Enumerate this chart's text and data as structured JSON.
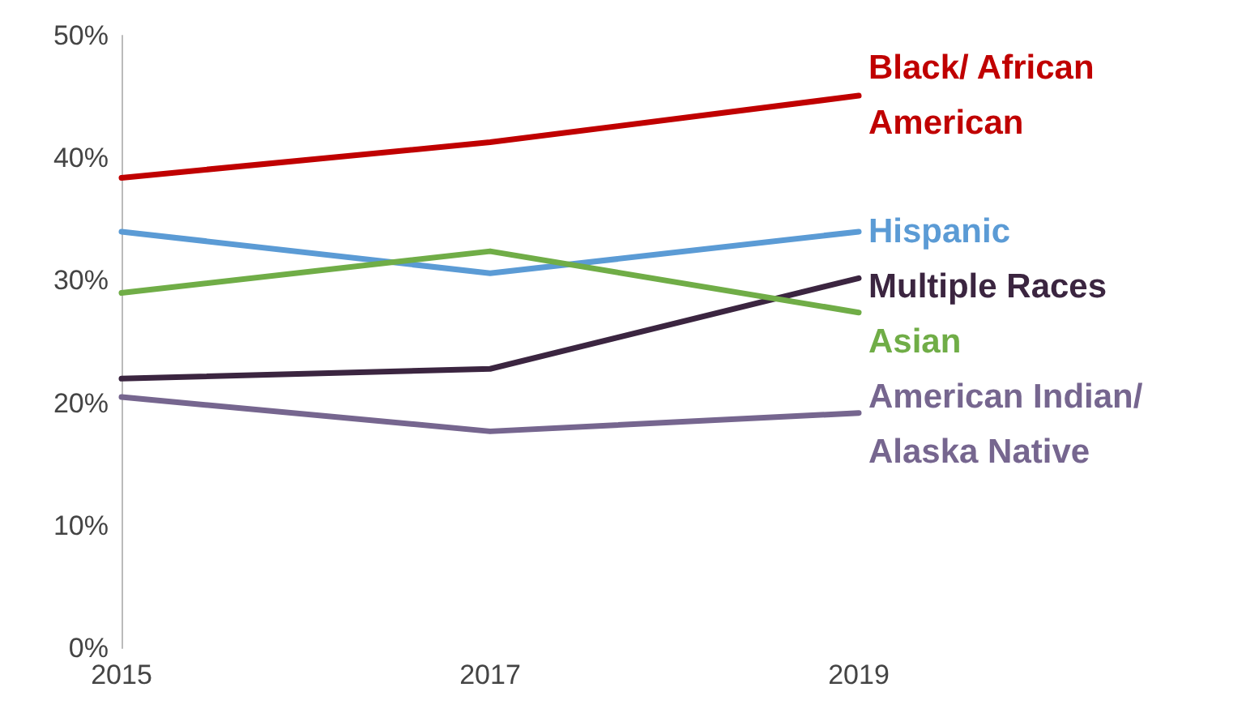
{
  "chart_data": {
    "type": "line",
    "x": [
      2015,
      2017,
      2019
    ],
    "xlim": [
      2015,
      2019
    ],
    "xticks": [
      2015,
      2017,
      2019
    ],
    "ylim": [
      0,
      50
    ],
    "yticks": [
      {
        "value": 0,
        "label": "0%"
      },
      {
        "value": 10,
        "label": "10%"
      },
      {
        "value": 20,
        "label": "20%"
      },
      {
        "value": 30,
        "label": "30%"
      },
      {
        "value": 40,
        "label": "40%"
      },
      {
        "value": 50,
        "label": "50%"
      }
    ],
    "grid": false,
    "legend": false,
    "marker": "none",
    "line_style": "solid",
    "series": [
      {
        "name": "Black/ African American",
        "color": "#c00000",
        "values": [
          38.4,
          41.3,
          45.1
        ]
      },
      {
        "name": "Hispanic",
        "color": "#5b9bd5",
        "values": [
          34.0,
          30.6,
          34.0
        ]
      },
      {
        "name": "Multiple Races",
        "color": "#3b2540",
        "values": [
          22.0,
          22.8,
          30.2
        ]
      },
      {
        "name": "Asian",
        "color": "#70ad47",
        "values": [
          29.0,
          32.4,
          27.4
        ]
      },
      {
        "name": "American Indian/ Alaska Native",
        "color": "#76668f",
        "values": [
          20.5,
          17.7,
          19.2
        ]
      }
    ]
  }
}
